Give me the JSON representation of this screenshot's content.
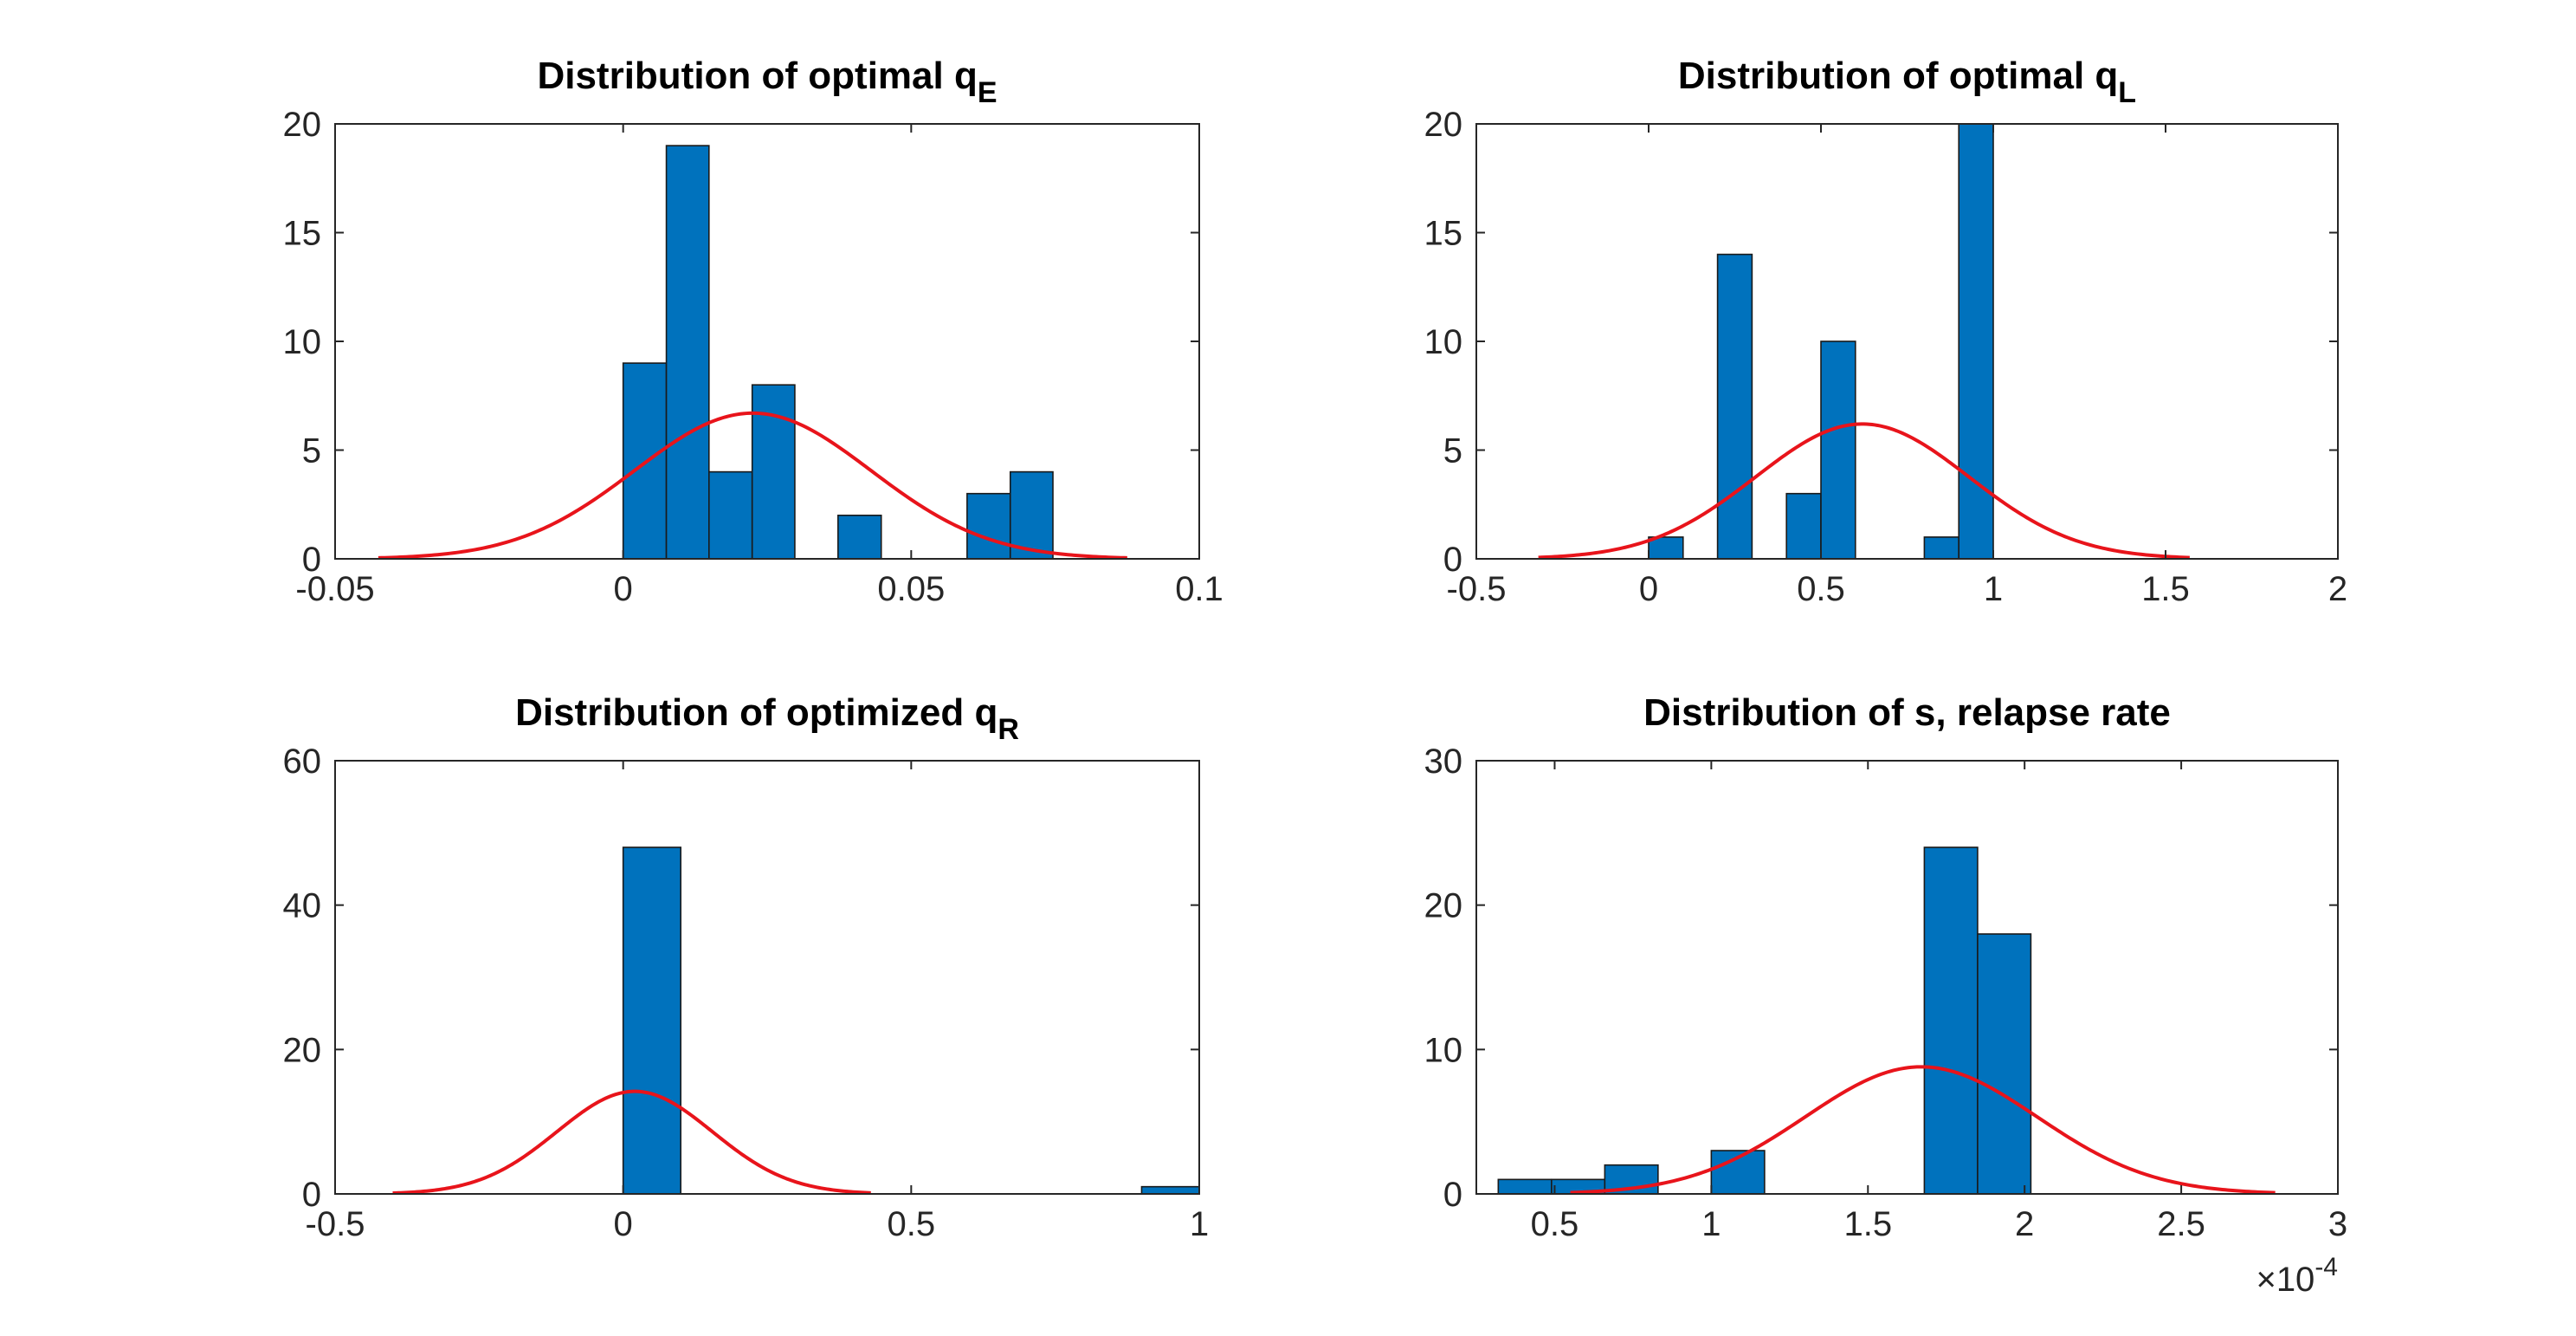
{
  "colors": {
    "bar": "#0072BD",
    "bar_edge": "#1a1a1a",
    "fit": "#E8141B",
    "axis": "#262626"
  },
  "chart_data": [
    {
      "type": "bar",
      "title": "Distribution of optimal q",
      "title_sub": "E",
      "xlim": [
        -0.05,
        0.1
      ],
      "ylim": [
        0,
        20
      ],
      "xticks": [
        -0.05,
        0,
        0.05,
        0.1
      ],
      "xtick_labels": [
        "-0.05",
        "0",
        "0.05",
        "0.1"
      ],
      "yticks": [
        0,
        5,
        10,
        15,
        20
      ],
      "ytick_labels": [
        "0",
        "5",
        "10",
        "15",
        "20"
      ],
      "bins": [
        {
          "x0": 0.0,
          "x1": 0.0075,
          "count": 9
        },
        {
          "x0": 0.0075,
          "x1": 0.0149,
          "count": 19
        },
        {
          "x0": 0.0149,
          "x1": 0.0224,
          "count": 4
        },
        {
          "x0": 0.0224,
          "x1": 0.0298,
          "count": 8
        },
        {
          "x0": 0.0373,
          "x1": 0.0448,
          "count": 2
        },
        {
          "x0": 0.0597,
          "x1": 0.0672,
          "count": 3
        },
        {
          "x0": 0.0672,
          "x1": 0.0746,
          "count": 4
        }
      ],
      "fit": {
        "mean": 0.0225,
        "sd": 0.0205,
        "peak": 6.7,
        "xmin": -0.0425,
        "xmax": 0.0875
      }
    },
    {
      "type": "bar",
      "title": "Distribution of optimal q",
      "title_sub": "L",
      "xlim": [
        -0.5,
        2
      ],
      "ylim": [
        0,
        20
      ],
      "xticks": [
        -0.5,
        0,
        0.5,
        1,
        1.5,
        2
      ],
      "xtick_labels": [
        "-0.5",
        "0",
        "0.5",
        "1",
        "1.5",
        "2"
      ],
      "yticks": [
        0,
        5,
        10,
        15,
        20
      ],
      "ytick_labels": [
        "0",
        "5",
        "10",
        "15",
        "20"
      ],
      "bins": [
        {
          "x0": 0.0,
          "x1": 0.1,
          "count": 1
        },
        {
          "x0": 0.2,
          "x1": 0.3,
          "count": 14
        },
        {
          "x0": 0.4,
          "x1": 0.5,
          "count": 3
        },
        {
          "x0": 0.5,
          "x1": 0.6,
          "count": 10
        },
        {
          "x0": 0.8,
          "x1": 0.9,
          "count": 1
        },
        {
          "x0": 0.9,
          "x1": 1.0,
          "count": 20
        }
      ],
      "fit": {
        "mean": 0.62,
        "sd": 0.31,
        "peak": 6.2,
        "xmin": -0.32,
        "xmax": 1.57
      }
    },
    {
      "type": "bar",
      "title": "Distribution of optimized q",
      "title_sub": "R",
      "xlim": [
        -0.5,
        1
      ],
      "ylim": [
        0,
        60
      ],
      "xticks": [
        -0.5,
        0,
        0.5,
        1
      ],
      "xtick_labels": [
        "-0.5",
        "0",
        "0.5",
        "1"
      ],
      "yticks": [
        0,
        20,
        40,
        60
      ],
      "ytick_labels": [
        "0",
        "20",
        "40",
        "60"
      ],
      "bins": [
        {
          "x0": 0.0,
          "x1": 0.1,
          "count": 48
        },
        {
          "x0": 0.9,
          "x1": 1.0,
          "count": 1
        }
      ],
      "fit": {
        "mean": 0.02,
        "sd": 0.135,
        "peak": 14.2,
        "xmin": -0.4,
        "xmax": 0.43
      }
    },
    {
      "type": "bar",
      "title": "Distribution of s, relapse rate",
      "title_sub": "",
      "xlim": [
        0.25,
        3
      ],
      "ylim": [
        0,
        30
      ],
      "xticks": [
        0.5,
        1,
        1.5,
        2,
        2.5,
        3
      ],
      "xtick_labels": [
        "0.5",
        "1",
        "1.5",
        "2",
        "2.5",
        "3"
      ],
      "yticks": [
        0,
        10,
        20,
        30
      ],
      "ytick_labels": [
        "0",
        "10",
        "20",
        "30"
      ],
      "x_multiplier_base": "×10",
      "x_multiplier_exp": "-4",
      "bins": [
        {
          "x0": 0.32,
          "x1": 0.49,
          "count": 1
        },
        {
          "x0": 0.49,
          "x1": 0.66,
          "count": 1
        },
        {
          "x0": 0.66,
          "x1": 0.83,
          "count": 2
        },
        {
          "x0": 1.0,
          "x1": 1.17,
          "count": 3
        },
        {
          "x0": 1.68,
          "x1": 1.85,
          "count": 24
        },
        {
          "x0": 1.85,
          "x1": 2.02,
          "count": 18
        }
      ],
      "fit": {
        "mean": 1.67,
        "sd": 0.37,
        "peak": 8.8,
        "xmin": 0.55,
        "xmax": 2.8
      }
    }
  ]
}
